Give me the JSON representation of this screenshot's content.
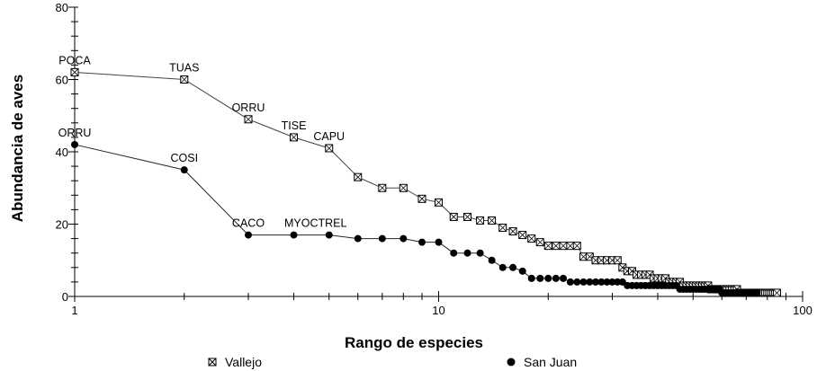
{
  "chart_data": {
    "type": "line",
    "xlabel": "Rango de especies",
    "ylabel": "Abundancia de aves",
    "xscale": "log",
    "xlim": [
      1,
      100
    ],
    "ylim": [
      0,
      80
    ],
    "x_ticks": [
      "1",
      "10",
      "100"
    ],
    "y_ticks": [
      "0",
      "20",
      "40",
      "60",
      "80"
    ],
    "legend_placement": "bottom",
    "series": [
      {
        "name": "Vallejo",
        "marker": "boxed-x",
        "values": [
          62,
          60,
          49,
          44,
          41,
          33,
          30,
          30,
          27,
          26,
          22,
          22,
          21,
          21,
          19,
          18,
          17,
          16,
          15,
          14,
          14,
          14,
          14,
          14,
          11,
          11,
          10,
          10,
          10,
          10,
          10,
          8,
          7,
          7,
          6,
          6,
          6,
          6,
          5,
          5,
          5,
          5,
          4,
          4,
          4,
          4,
          3,
          3,
          3,
          3,
          3,
          3,
          3,
          3,
          3,
          2,
          2,
          2,
          2,
          2,
          2,
          2,
          2,
          2,
          2,
          2,
          1,
          1,
          1,
          1,
          1,
          1,
          1,
          1,
          1,
          1,
          1,
          1,
          1,
          1,
          1,
          1,
          1,
          1,
          1
        ],
        "annotations": [
          {
            "rank": 1,
            "label": "POCA"
          },
          {
            "rank": 2,
            "label": "TUAS"
          },
          {
            "rank": 3,
            "label": "ORRU"
          },
          {
            "rank": 4,
            "label": "TISE"
          },
          {
            "rank": 5,
            "label": "CAPU"
          }
        ]
      },
      {
        "name": "San Juan",
        "marker": "filled-circle",
        "values": [
          42,
          35,
          17,
          17,
          17,
          16,
          16,
          16,
          15,
          15,
          12,
          12,
          12,
          10,
          8,
          8,
          7,
          5,
          5,
          5,
          5,
          5,
          4,
          4,
          4,
          4,
          4,
          4,
          4,
          4,
          4,
          4,
          3,
          3,
          3,
          3,
          3,
          3,
          3,
          3,
          3,
          3,
          3,
          3,
          3,
          2,
          2,
          2,
          2,
          2,
          2,
          2,
          2,
          2,
          2,
          2,
          2,
          2,
          2,
          1,
          1,
          1,
          1,
          1,
          1,
          1,
          1,
          1,
          1,
          1,
          1,
          1,
          1,
          1,
          1
        ],
        "annotations": [
          {
            "rank": 1,
            "label": "ORRU"
          },
          {
            "rank": 2,
            "label": "COSI"
          },
          {
            "rank": 3,
            "label": "CACO"
          },
          {
            "rank": 5,
            "label": "MYOCTREL"
          }
        ]
      }
    ]
  }
}
